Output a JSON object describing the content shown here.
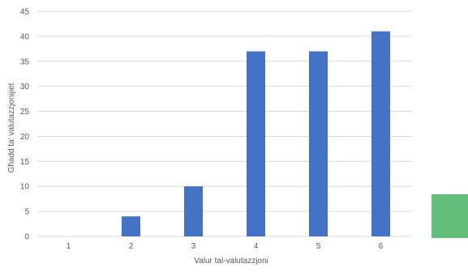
{
  "chart_data": {
    "type": "bar",
    "categories": [
      "1",
      "2",
      "3",
      "4",
      "5",
      "6"
    ],
    "values": [
      0,
      4,
      10,
      37,
      37,
      41
    ],
    "title": "",
    "xlabel": "Valur tal-valutazzjoni",
    "ylabel": "Għadd ta' valutazzjonijiet",
    "ylim": [
      0,
      45
    ],
    "yticks": [
      0,
      5,
      10,
      15,
      20,
      25,
      30,
      35,
      40,
      45
    ],
    "grid": true,
    "bar_color": "#4472C4"
  },
  "colors": {
    "grid": "#D9D9D9",
    "text": "#595959",
    "side_block": "#63BE7B"
  }
}
